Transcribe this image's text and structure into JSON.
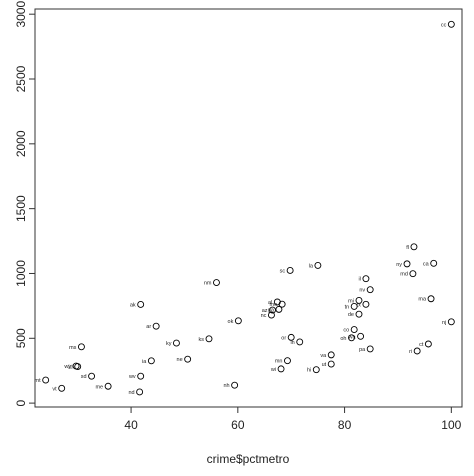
{
  "chart_data": {
    "type": "scatter",
    "xlabel": "crime$pctmetro",
    "ylabel": "",
    "xlim": [
      22,
      102
    ],
    "ylim": [
      -30,
      3040
    ],
    "xticks": [
      40,
      60,
      80,
      100
    ],
    "yticks": [
      0,
      500,
      1000,
      1500,
      2000,
      2500,
      3000
    ],
    "point_color": "#000000",
    "highlight_color": "#1a8a7a",
    "points": [
      {
        "label": "cc",
        "x": 100.0,
        "y": 2922
      },
      {
        "label": "fl",
        "x": 93.0,
        "y": 1206
      },
      {
        "label": "ca",
        "x": 96.7,
        "y": 1078
      },
      {
        "label": "ny",
        "x": 91.7,
        "y": 1074
      },
      {
        "label": "md",
        "x": 92.8,
        "y": 998
      },
      {
        "label": "la",
        "x": 75.0,
        "y": 1062
      },
      {
        "label": "sc",
        "x": 69.8,
        "y": 1023
      },
      {
        "label": "il",
        "x": 84.0,
        "y": 960,
        "highlight": true
      },
      {
        "label": "nv",
        "x": 84.8,
        "y": 875
      },
      {
        "label": "ma",
        "x": 96.2,
        "y": 805
      },
      {
        "label": "mi",
        "x": 82.7,
        "y": 792
      },
      {
        "label": "tx",
        "x": 84.0,
        "y": 762
      },
      {
        "label": "tn",
        "x": 81.8,
        "y": 746
      },
      {
        "label": "de",
        "x": 82.7,
        "y": 686
      },
      {
        "label": "ak",
        "x": 41.8,
        "y": 761
      },
      {
        "label": "nm",
        "x": 56.0,
        "y": 930
      },
      {
        "label": "ga",
        "x": 67.7,
        "y": 723
      },
      {
        "label": "az",
        "x": 66.5,
        "y": 718
      },
      {
        "label": "al",
        "x": 67.4,
        "y": 780
      },
      {
        "label": "nc",
        "x": 66.3,
        "y": 679
      },
      {
        "label": "mo",
        "x": 68.3,
        "y": 763
      },
      {
        "label": "ok",
        "x": 60.1,
        "y": 635
      },
      {
        "label": "ar",
        "x": 44.7,
        "y": 593
      },
      {
        "label": "nj",
        "x": 100.0,
        "y": 627
      },
      {
        "label": "co",
        "x": 81.8,
        "y": 567
      },
      {
        "label": "or",
        "x": 70.0,
        "y": 507
      },
      {
        "label": "ks",
        "x": 54.6,
        "y": 496
      },
      {
        "label": "in",
        "x": 71.6,
        "y": 472
      },
      {
        "label": "wa",
        "x": 83.0,
        "y": 515
      },
      {
        "label": "oh",
        "x": 81.3,
        "y": 504
      },
      {
        "label": "ky",
        "x": 48.5,
        "y": 463
      },
      {
        "label": "ms",
        "x": 30.7,
        "y": 434
      },
      {
        "label": "pa",
        "x": 84.8,
        "y": 418
      },
      {
        "label": "ri",
        "x": 93.6,
        "y": 402
      },
      {
        "label": "ct",
        "x": 95.7,
        "y": 456
      },
      {
        "label": "va",
        "x": 77.5,
        "y": 372
      },
      {
        "label": "ne",
        "x": 50.6,
        "y": 339
      },
      {
        "label": "ia",
        "x": 43.8,
        "y": 326
      },
      {
        "label": "mn",
        "x": 69.3,
        "y": 327
      },
      {
        "label": "ut",
        "x": 77.5,
        "y": 301
      },
      {
        "label": "wi",
        "x": 68.1,
        "y": 264
      },
      {
        "label": "hi",
        "x": 74.7,
        "y": 258
      },
      {
        "label": "id",
        "x": 30.0,
        "y": 282
      },
      {
        "label": "wy",
        "x": 29.7,
        "y": 286
      },
      {
        "label": "sd",
        "x": 32.6,
        "y": 208
      },
      {
        "label": "wv",
        "x": 41.8,
        "y": 208
      },
      {
        "label": "me",
        "x": 35.7,
        "y": 130
      },
      {
        "label": "mt",
        "x": 24.0,
        "y": 178
      },
      {
        "label": "vt",
        "x": 27.0,
        "y": 114
      },
      {
        "label": "nh",
        "x": 59.4,
        "y": 138
      },
      {
        "label": "nd",
        "x": 41.6,
        "y": 86
      }
    ]
  }
}
